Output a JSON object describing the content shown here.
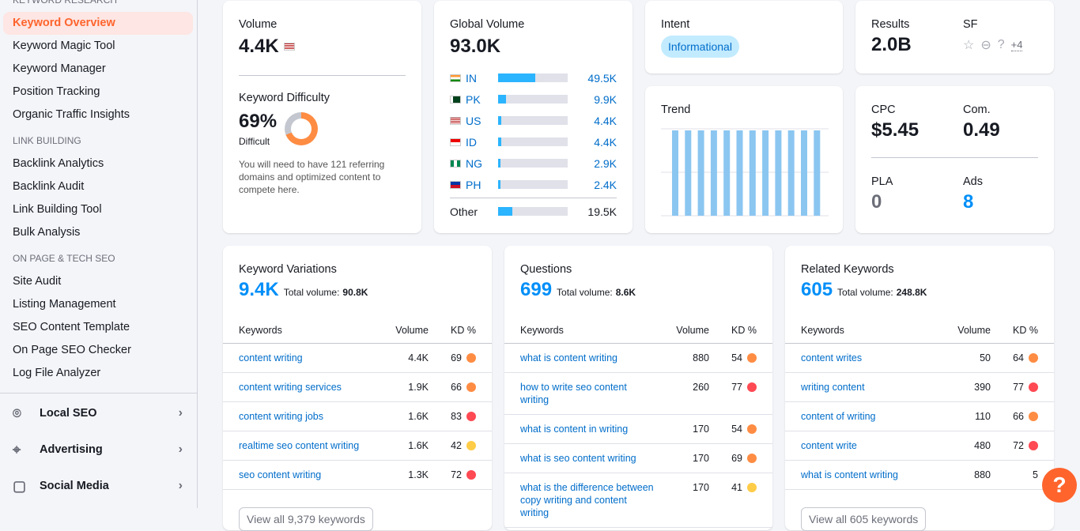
{
  "sidebar": {
    "section_keyword": "Keyword Research",
    "keyword_items": [
      "Keyword Overview",
      "Keyword Magic Tool",
      "Keyword Manager",
      "Position Tracking",
      "Organic Traffic Insights"
    ],
    "section_link": "Link Building",
    "link_items": [
      "Backlink Analytics",
      "Backlink Audit",
      "Link Building Tool",
      "Bulk Analysis"
    ],
    "section_onpage": "On Page & Tech SEO",
    "onpage_items": [
      "Site Audit",
      "Listing Management",
      "SEO Content Template",
      "On Page SEO Checker",
      "Log File Analyzer"
    ],
    "groups": [
      {
        "label": "Local SEO",
        "icon": "map-pin-icon"
      },
      {
        "label": "Advertising",
        "icon": "crosshair-icon"
      },
      {
        "label": "Social Media",
        "icon": "chat-icon"
      }
    ]
  },
  "volume": {
    "label": "Volume",
    "value": "4.4K",
    "flag": "US"
  },
  "kd": {
    "label": "Keyword Difficulty",
    "value": "69%",
    "level": "Difficult",
    "percent": 69,
    "text": "You will need to have 121 referring domains and optimized content to compete here.",
    "color": "#ff8c43"
  },
  "global": {
    "label": "Global Volume",
    "value": "93.0K",
    "rows": [
      {
        "code": "IN",
        "value": "49.5K",
        "share": 0.53
      },
      {
        "code": "PK",
        "value": "9.9K",
        "share": 0.11
      },
      {
        "code": "US",
        "value": "4.4K",
        "share": 0.05
      },
      {
        "code": "ID",
        "value": "4.4K",
        "share": 0.05
      },
      {
        "code": "NG",
        "value": "2.9K",
        "share": 0.03
      },
      {
        "code": "PH",
        "value": "2.4K",
        "share": 0.03
      }
    ],
    "other": {
      "label": "Other",
      "value": "19.5K",
      "share": 0.21
    }
  },
  "intent": {
    "label": "Intent",
    "value": "Informational"
  },
  "trend": {
    "label": "Trend",
    "values": [
      1,
      1,
      1,
      1,
      1,
      1,
      1,
      1,
      1,
      1,
      1,
      1
    ]
  },
  "results": {
    "label": "Results",
    "value": "2.0B",
    "sf_label": "SF",
    "sf_more": "+4"
  },
  "cpc": {
    "label": "CPC",
    "value": "$5.45",
    "com_label": "Com.",
    "com_value": "0.49",
    "pla_label": "PLA",
    "pla_value": "0",
    "ads_label": "Ads",
    "ads_value": "8"
  },
  "panels": [
    {
      "title": "Keyword Variations",
      "count": "9.4K",
      "total_label": "Total volume:",
      "total": "90.8K",
      "col_kw": "Keywords",
      "col_vol": "Volume",
      "col_kd": "KD %",
      "button": "View all 9,379 keywords",
      "rows": [
        [
          "content writing",
          "4.4K",
          "69",
          "#ff8c43"
        ],
        [
          "content writing services",
          "1.9K",
          "66",
          "#ff8c43"
        ],
        [
          "content writing jobs",
          "1.6K",
          "83",
          "#ff4953"
        ],
        [
          "realtime seo content writing",
          "1.6K",
          "42",
          "#ffcc47"
        ],
        [
          "seo content writing",
          "1.3K",
          "72",
          "#ff4953"
        ]
      ]
    },
    {
      "title": "Questions",
      "count": "699",
      "total_label": "Total volume:",
      "total": "8.6K",
      "col_kw": "Keywords",
      "col_vol": "Volume",
      "col_kd": "KD %",
      "button": "",
      "rows": [
        [
          "what is content writing",
          "880",
          "54",
          "#ff8c43"
        ],
        [
          "how to write seo content writing",
          "260",
          "77",
          "#ff4953"
        ],
        [
          "what is content in writing",
          "170",
          "54",
          "#ff8c43"
        ],
        [
          "what is seo content writing",
          "170",
          "69",
          "#ff8c43"
        ],
        [
          "what is the difference between copy writing and content writing",
          "170",
          "41",
          "#ffcc47"
        ]
      ]
    },
    {
      "title": "Related Keywords",
      "count": "605",
      "total_label": "Total volume:",
      "total": "248.8K",
      "col_kw": "Keywords",
      "col_vol": "Volume",
      "col_kd": "KD %",
      "button": "View all 605 keywords",
      "rows": [
        [
          "content writes",
          "50",
          "64",
          "#ff8c43"
        ],
        [
          "writing content",
          "390",
          "77",
          "#ff4953"
        ],
        [
          "content of writing",
          "110",
          "66",
          "#ff8c43"
        ],
        [
          "content write",
          "480",
          "72",
          "#ff4953"
        ],
        [
          "what is content writing",
          "880",
          "5",
          ""
        ]
      ]
    }
  ],
  "help": {
    "label": "?"
  }
}
